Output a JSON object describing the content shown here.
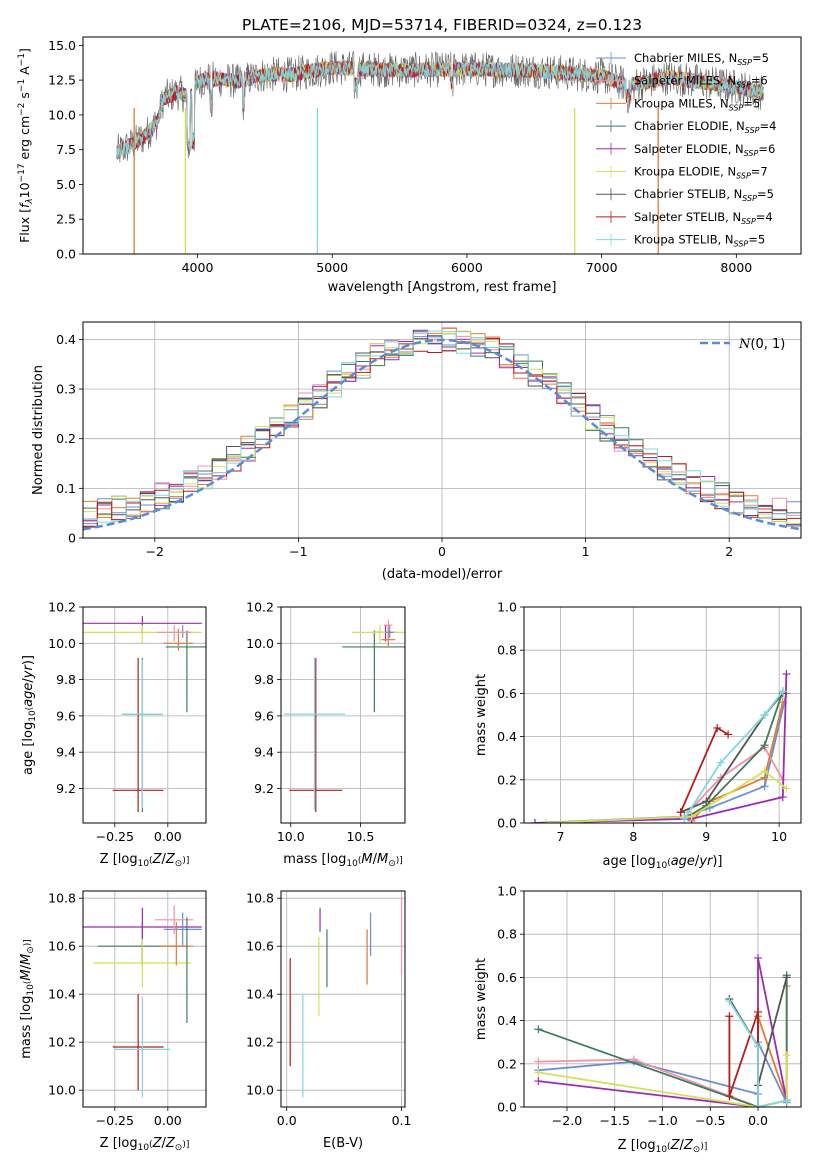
{
  "figure_title": "PLATE=2106, MJD=53714, FIBERID=0324, z=0.123",
  "chart_data": [
    {
      "id": "spectrum",
      "type": "line",
      "xlabel": "wavelength [Angstrom, rest frame]",
      "ylabel": "Flux [f_λ 10^-17 erg cm^-2 s^-1 A^-1]",
      "xlim": [
        3150,
        8480
      ],
      "ylim": [
        0,
        15.6
      ],
      "xticks": [
        4000,
        5000,
        6000,
        7000,
        8000
      ],
      "yticks": [
        0.0,
        2.5,
        5.0,
        7.5,
        10.0,
        12.5,
        15.0
      ],
      "grid": false,
      "legend_position": "top-right",
      "data_range_x": [
        3400,
        8200
      ],
      "continuum": {
        "x": [
          3400,
          3500,
          3600,
          3700,
          3750,
          3850,
          3950,
          4000,
          4100,
          4300,
          4500,
          4700,
          5000,
          5500,
          6000,
          6500,
          7000,
          7200,
          7500,
          8000,
          8200
        ],
        "y": [
          7.3,
          7.8,
          8.4,
          9.5,
          11.2,
          11.6,
          11.3,
          12.4,
          12.6,
          12.4,
          12.9,
          12.9,
          13.4,
          13.2,
          13.3,
          13.2,
          12.8,
          12.1,
          12.7,
          12.0,
          11.6
        ]
      },
      "dropouts": [
        {
          "x": 3530,
          "color": "#e07b39"
        },
        {
          "x": 3910,
          "color": "#d4e157"
        },
        {
          "x": 4890,
          "color": "#80d8e0"
        },
        {
          "x": 6800,
          "color": "#d4e157"
        },
        {
          "x": 7420,
          "color": "#e07b39"
        }
      ],
      "series": [
        {
          "name": "Chabrier MILES, N_SSP=5",
          "color": "#6b8fd1"
        },
        {
          "name": "Salpeter MILES, N_SSP=6",
          "color": "#f291a6"
        },
        {
          "name": "Kroupa MILES, N_SSP=5",
          "color": "#e07b39"
        },
        {
          "name": "Chabrier ELODIE, N_SSP=4",
          "color": "#3f7d5a"
        },
        {
          "name": "Salpeter ELODIE, N_SSP=6",
          "color": "#9c2bb2"
        },
        {
          "name": "Kroupa ELODIE, N_SSP=7",
          "color": "#d4e157"
        },
        {
          "name": "Chabrier STELIB, N_SSP=5",
          "color": "#555555"
        },
        {
          "name": "Salpeter STELIB, N_SSP=4",
          "color": "#b71c1c"
        },
        {
          "name": "Kroupa STELIB, N_SSP=5",
          "color": "#80d8e0"
        }
      ]
    },
    {
      "id": "residuals",
      "type": "histogram",
      "xlabel": "(data-model)/error",
      "ylabel": "Normed distribution",
      "xlim": [
        -2.5,
        2.5
      ],
      "ylim": [
        0,
        0.435
      ],
      "xticks": [
        -2,
        -1,
        0,
        1,
        2
      ],
      "yticks": [
        0.0,
        0.1,
        0.2,
        0.3,
        0.4
      ],
      "grid": true,
      "legend": "N(0,1)",
      "legend_position": "top-right",
      "gaussian": {
        "mu": 0,
        "sigma": 1,
        "color": "#5b8bd6"
      },
      "bin_width": 0.1,
      "colors": [
        "#6b8fd1",
        "#f291a6",
        "#e07b39",
        "#3f7d5a",
        "#9c2bb2",
        "#d4e157",
        "#555555",
        "#b71c1c",
        "#80d8e0"
      ]
    },
    {
      "id": "age-vs-z",
      "type": "errorbar",
      "xlabel": "Z [log10(Z/Z⊙)]",
      "ylabel": "age [log10(age/yr)]",
      "xlim": [
        -0.4,
        0.18
      ],
      "ylim": [
        9.01,
        10.2
      ],
      "xticks": [
        -0.25,
        0.0
      ],
      "xtick_labels": [
        "−0.25",
        "0.00"
      ],
      "yticks": [
        9.2,
        9.4,
        9.6,
        9.8,
        10.0,
        10.2
      ],
      "ytick_labels": [
        "9.2",
        "9.4",
        "9.6",
        "9.8",
        "10.0",
        "10.2"
      ],
      "grid": true,
      "points": [
        {
          "x": -0.14,
          "y": 9.19,
          "xerr": 0.12,
          "yerr_lo": 0.12,
          "yerr_hi": 0.73,
          "color": "#b71c1c"
        },
        {
          "x": -0.12,
          "y": 9.61,
          "xerr": 0.09,
          "yerr_lo": 0.54,
          "yerr_hi": 0.31,
          "color": "#3f7d5a"
        },
        {
          "x": -0.12,
          "y": 9.61,
          "xerr": 0.1,
          "yerr_lo": 0.52,
          "yerr_hi": 0.3,
          "color": "#80d8e0"
        },
        {
          "x": -0.12,
          "y": 10.11,
          "xerr": 0.28,
          "yerr_lo": 0.06,
          "yerr_hi": 0.04,
          "color": "#9c2bb2"
        },
        {
          "x": 0.09,
          "y": 9.98,
          "xerr": 0.1,
          "yerr_lo": 0.36,
          "yerr_hi": 0.09,
          "color": "#3f7d5a"
        },
        {
          "x": 0.05,
          "y": 10.0,
          "xerr": 0.07,
          "yerr_lo": 0.04,
          "yerr_hi": 0.08,
          "color": "#e07b39"
        },
        {
          "x": 0.07,
          "y": 10.06,
          "xerr": 0.05,
          "yerr_lo": 0.03,
          "yerr_hi": 0.04,
          "color": "#6b8fd1"
        },
        {
          "x": -0.12,
          "y": 10.06,
          "xerr": 0.28,
          "yerr_lo": 0.06,
          "yerr_hi": 0.04,
          "color": "#d4e157"
        },
        {
          "x": 0.03,
          "y": 10.06,
          "xerr": 0.08,
          "yerr_lo": 0.05,
          "yerr_hi": 0.04,
          "color": "#f291a6"
        }
      ]
    },
    {
      "id": "age-vs-mass",
      "type": "errorbar",
      "xlabel": "mass [log10(M/M⊙)]",
      "ylabel": "",
      "xlim": [
        9.93,
        10.82
      ],
      "ylim": [
        9.01,
        10.2
      ],
      "xticks": [
        10.0,
        10.5
      ],
      "xtick_labels": [
        "10.0",
        "10.5"
      ],
      "yticks": [
        9.2,
        9.4,
        9.6,
        9.8,
        10.0,
        10.2
      ],
      "ytick_labels": [
        "9.2",
        "9.4",
        "9.6",
        "9.8",
        "10.0",
        "10.2"
      ],
      "grid": true,
      "points": [
        {
          "x": 10.18,
          "y": 9.19,
          "xerr": 0.19,
          "yerr_lo": 0.12,
          "yerr_hi": 0.73,
          "color": "#b71c1c"
        },
        {
          "x": 10.17,
          "y": 9.61,
          "xerr": 0.22,
          "yerr_lo": 0.53,
          "yerr_hi": 0.31,
          "color": "#80d8e0"
        },
        {
          "x": 10.6,
          "y": 9.98,
          "xerr": 0.23,
          "yerr_lo": 0.36,
          "yerr_hi": 0.09,
          "color": "#3f7d5a"
        },
        {
          "x": 10.68,
          "y": 10.06,
          "xerr": 0.08,
          "yerr_lo": 0.05,
          "yerr_hi": 0.04,
          "color": "#9c2bb2"
        },
        {
          "x": 10.64,
          "y": 10.06,
          "xerr": 0.2,
          "yerr_lo": 0.06,
          "yerr_hi": 0.04,
          "color": "#d4e157"
        },
        {
          "x": 10.7,
          "y": 10.02,
          "xerr": 0.05,
          "yerr_lo": 0.04,
          "yerr_hi": 0.08,
          "color": "#e07b39"
        },
        {
          "x": 10.71,
          "y": 10.06,
          "xerr": 0.03,
          "yerr_lo": 0.03,
          "yerr_hi": 0.04,
          "color": "#6b8fd1"
        },
        {
          "x": 10.7,
          "y": 10.1,
          "xerr": 0.03,
          "yerr_lo": 0.03,
          "yerr_hi": 0.03,
          "color": "#f291a6"
        }
      ]
    },
    {
      "id": "weight-vs-age",
      "type": "line",
      "xlabel": "age  [log10(age/yr)]",
      "ylabel": "mass weight",
      "xlim": [
        6.5,
        10.3
      ],
      "ylim": [
        0.0,
        1.0
      ],
      "xticks": [
        7,
        8,
        9,
        10
      ],
      "xtick_labels": [
        "7",
        "8",
        "9",
        "10"
      ],
      "yticks": [
        0.0,
        0.2,
        0.4,
        0.6,
        0.8,
        1.0
      ],
      "ytick_labels": [
        "0.0",
        "0.2",
        "0.4",
        "0.6",
        "0.8",
        "1.0"
      ],
      "grid": true,
      "series": [
        {
          "color": "#6b8fd1",
          "x": [
            6.65,
            8.7,
            9.05,
            9.8,
            10.1
          ],
          "y": [
            0.0,
            0.03,
            0.07,
            0.17,
            0.6
          ]
        },
        {
          "color": "#f291a6",
          "x": [
            8.75,
            9.2,
            9.8,
            10.05
          ],
          "y": [
            0.05,
            0.21,
            0.35,
            0.2
          ]
        },
        {
          "color": "#e07b39",
          "x": [
            8.8,
            9.05,
            9.8,
            10.05
          ],
          "y": [
            0.01,
            0.1,
            0.21,
            0.56
          ]
        },
        {
          "color": "#3f7d5a",
          "x": [
            8.75,
            9.0,
            9.8,
            10.05
          ],
          "y": [
            0.03,
            0.08,
            0.36,
            0.61
          ]
        },
        {
          "color": "#9c2bb2",
          "x": [
            6.65,
            8.8,
            10.05,
            10.1
          ],
          "y": [
            0.0,
            0.02,
            0.12,
            0.69
          ]
        },
        {
          "color": "#d4e157",
          "x": [
            6.8,
            8.8,
            9.8,
            10.1
          ],
          "y": [
            0.0,
            0.03,
            0.24,
            0.16
          ]
        },
        {
          "color": "#555555",
          "x": [
            8.65,
            9.0,
            9.8,
            10.05
          ],
          "y": [
            0.05,
            0.1,
            0.5,
            0.6
          ]
        },
        {
          "color": "#b71c1c",
          "x": [
            8.65,
            9.15,
            9.3
          ],
          "y": [
            0.05,
            0.44,
            0.41
          ]
        },
        {
          "color": "#80d8e0",
          "x": [
            8.7,
            9.2,
            9.8,
            10.05
          ],
          "y": [
            0.02,
            0.28,
            0.5,
            0.61
          ]
        }
      ]
    },
    {
      "id": "mass-vs-z",
      "type": "errorbar",
      "xlabel": "Z [log10(Z/Z⊙)]",
      "ylabel": "mass [log10(M/M⊙)]",
      "xlim": [
        -0.4,
        0.18
      ],
      "ylim": [
        9.93,
        10.83
      ],
      "xticks": [
        -0.25,
        0.0
      ],
      "xtick_labels": [
        "−0.25",
        "0.00"
      ],
      "yticks": [
        10.0,
        10.2,
        10.4,
        10.6,
        10.8
      ],
      "ytick_labels": [
        "10.0",
        "10.2",
        "10.4",
        "10.6",
        "10.8"
      ],
      "grid": true,
      "points": [
        {
          "x": -0.14,
          "y": 10.18,
          "xerr": 0.12,
          "yerr_lo": 0.18,
          "yerr_hi": 0.22,
          "color": "#b71c1c"
        },
        {
          "x": -0.12,
          "y": 10.17,
          "xerr": 0.13,
          "yerr_lo": 0.2,
          "yerr_hi": 0.22,
          "color": "#80d8e0"
        },
        {
          "x": -0.12,
          "y": 10.6,
          "xerr": 0.21,
          "yerr_lo": 0.08,
          "yerr_hi": 0.1,
          "color": "#3f7d5a"
        },
        {
          "x": -0.12,
          "y": 10.68,
          "xerr": 0.28,
          "yerr_lo": 0.16,
          "yerr_hi": 0.08,
          "color": "#9c2bb2"
        },
        {
          "x": -0.12,
          "y": 10.53,
          "xerr": 0.23,
          "yerr_lo": 0.1,
          "yerr_hi": 0.1,
          "color": "#d4e157"
        },
        {
          "x": 0.04,
          "y": 10.6,
          "xerr": 0.08,
          "yerr_lo": 0.08,
          "yerr_hi": 0.1,
          "color": "#e07b39"
        },
        {
          "x": 0.07,
          "y": 10.67,
          "xerr": 0.09,
          "yerr_lo": 0.07,
          "yerr_hi": 0.07,
          "color": "#6b8fd1"
        },
        {
          "x": 0.03,
          "y": 10.71,
          "xerr": 0.09,
          "yerr_lo": 0.06,
          "yerr_hi": 0.06,
          "color": "#f291a6"
        },
        {
          "x": 0.09,
          "y": 10.6,
          "xerr": 0.0,
          "yerr_lo": 0.32,
          "yerr_hi": 0.12,
          "color": "#3f7d5a"
        }
      ]
    },
    {
      "id": "mass-vs-ebv",
      "type": "errorbar",
      "xlabel": "E(B-V)",
      "ylabel": "",
      "xlim": [
        -0.005,
        0.103
      ],
      "ylim": [
        9.93,
        10.83
      ],
      "xticks": [
        0.0,
        0.1
      ],
      "xtick_labels": [
        "0.0",
        "0.1"
      ],
      "yticks": [
        10.0,
        10.2,
        10.4,
        10.6,
        10.8
      ],
      "ytick_labels": [
        "10.0",
        "10.2",
        "10.4",
        "10.6",
        "10.8"
      ],
      "grid": true,
      "points": [
        {
          "x": 0.003,
          "y": 10.3,
          "xerr": 0.0,
          "yerr_lo": 0.2,
          "yerr_hi": 0.25,
          "color": "#b71c1c"
        },
        {
          "x": 0.014,
          "y": 10.2,
          "xerr": 0.0,
          "yerr_lo": 0.23,
          "yerr_hi": 0.2,
          "color": "#80d8e0"
        },
        {
          "x": 0.028,
          "y": 10.48,
          "xerr": 0.0,
          "yerr_lo": 0.17,
          "yerr_hi": 0.16,
          "color": "#d4e157"
        },
        {
          "x": 0.029,
          "y": 10.68,
          "xerr": 0.0,
          "yerr_lo": 0.02,
          "yerr_hi": 0.08,
          "color": "#9c2bb2"
        },
        {
          "x": 0.035,
          "y": 10.55,
          "xerr": 0.0,
          "yerr_lo": 0.12,
          "yerr_hi": 0.12,
          "color": "#3f7d5a"
        },
        {
          "x": 0.07,
          "y": 10.55,
          "xerr": 0.0,
          "yerr_lo": 0.11,
          "yerr_hi": 0.12,
          "color": "#e07b39"
        },
        {
          "x": 0.073,
          "y": 10.62,
          "xerr": 0.0,
          "yerr_lo": 0.06,
          "yerr_hi": 0.12,
          "color": "#6b8fd1"
        },
        {
          "x": 0.1,
          "y": 10.65,
          "xerr": 0.0,
          "yerr_lo": 0.17,
          "yerr_hi": 0.15,
          "color": "#f291a6"
        }
      ]
    },
    {
      "id": "weight-vs-z",
      "type": "line",
      "xlabel": "Z [log10(Z/Z⊙)]",
      "ylabel": "mass weight",
      "xlim": [
        -2.45,
        0.45
      ],
      "ylim": [
        0.0,
        1.0
      ],
      "xticks": [
        -2.0,
        -1.5,
        -1.0,
        -0.5,
        0.0
      ],
      "xtick_labels": [
        "−2.0",
        "−1.5",
        "−1.0",
        "−0.5",
        "0.0"
      ],
      "yticks": [
        0.0,
        0.2,
        0.4,
        0.6,
        0.8,
        1.0
      ],
      "ytick_labels": [
        "0.0",
        "0.2",
        "0.4",
        "0.6",
        "0.8",
        "1.0"
      ],
      "grid": true,
      "series": [
        {
          "color": "#6b8fd1",
          "x": [
            -2.3,
            -1.3,
            0.0,
            0.0,
            0.3
          ],
          "y": [
            0.17,
            0.21,
            0.06,
            0.3,
            0.02
          ]
        },
        {
          "color": "#f291a6",
          "x": [
            -2.3,
            -1.3,
            0.0,
            0.3
          ],
          "y": [
            0.21,
            0.22,
            0.0,
            0.03
          ]
        },
        {
          "color": "#e07b39",
          "x": [
            0.0,
            0.0,
            0.3,
            0.3
          ],
          "y": [
            0.0,
            0.42,
            0.03,
            0.56
          ]
        },
        {
          "color": "#3f7d5a",
          "x": [
            -2.3,
            0.0,
            0.3,
            0.3
          ],
          "y": [
            0.36,
            0.0,
            0.03,
            0.61
          ]
        },
        {
          "color": "#9c2bb2",
          "x": [
            -2.3,
            0.0,
            0.0,
            0.3
          ],
          "y": [
            0.12,
            0.0,
            0.69,
            0.03
          ]
        },
        {
          "color": "#d4e157",
          "x": [
            -2.3,
            0.0,
            0.3,
            0.3
          ],
          "y": [
            0.16,
            0.0,
            0.03,
            0.24
          ]
        },
        {
          "color": "#555555",
          "x": [
            -0.3,
            0.0,
            0.0,
            0.3
          ],
          "y": [
            0.5,
            0.28,
            0.1,
            0.6
          ]
        },
        {
          "color": "#b71c1c",
          "x": [
            -0.3,
            -0.3,
            0.0,
            0.0
          ],
          "y": [
            0.42,
            0.05,
            0.44,
            0.0
          ]
        },
        {
          "color": "#80d8e0",
          "x": [
            -0.3,
            0.0,
            0.0,
            0.3
          ],
          "y": [
            0.49,
            0.28,
            0.0,
            0.03
          ]
        }
      ]
    }
  ]
}
